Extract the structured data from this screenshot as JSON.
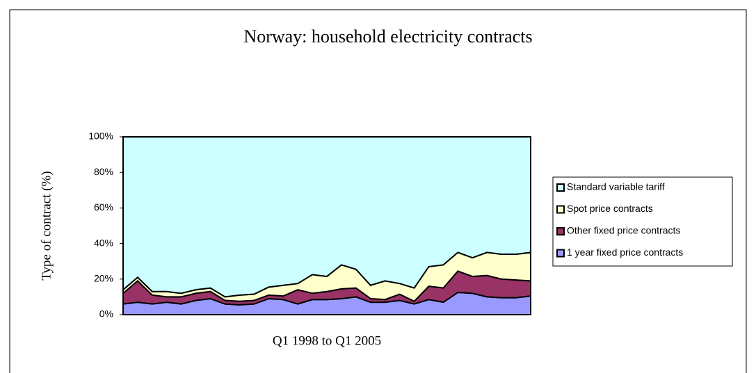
{
  "chart_data": {
    "type": "area",
    "stacked": true,
    "title": "Norway: household electricity contracts",
    "x_label": "Q1 1998 to Q1 2005",
    "y_label": "Type of contract (%)",
    "categories": [
      null,
      null,
      null,
      null,
      null,
      null,
      null,
      null,
      null,
      null,
      null,
      null,
      null,
      null,
      null,
      null,
      null,
      null,
      null,
      null,
      null,
      null,
      null,
      null,
      null,
      null,
      null,
      null,
      null
    ],
    "series": [
      {
        "name": "1 year fixed price contracts",
        "color": "#9999ff",
        "values": [
          6,
          7,
          6,
          7,
          6,
          8,
          9,
          6,
          5.5,
          6,
          9,
          8.5,
          6,
          8.5,
          8.5,
          9,
          10,
          7,
          7,
          8,
          6,
          8.5,
          7,
          12.5,
          12,
          10,
          9.5,
          9.5,
          10.5
        ]
      },
      {
        "name": "Other fixed price contracts",
        "color": "#993366",
        "values": [
          6,
          12,
          5,
          3,
          4,
          4,
          4,
          2,
          2,
          2,
          2,
          2,
          8,
          3.5,
          4.5,
          5.5,
          5,
          2,
          1.5,
          3.5,
          1.5,
          7.5,
          8,
          12,
          9.5,
          12,
          10.5,
          10,
          8.5
        ]
      },
      {
        "name": "Spot price contracts",
        "color": "#ffffcc",
        "values": [
          2,
          2,
          2,
          3,
          2,
          2,
          2,
          2,
          3.5,
          3.5,
          4.5,
          6,
          3.5,
          10.5,
          8.5,
          13.5,
          10.5,
          7.5,
          10.5,
          6,
          7.5,
          11,
          13,
          10.5,
          10.5,
          13,
          14,
          14.5,
          16
        ]
      },
      {
        "name": "Standard variable tariff",
        "color": "#ccffff",
        "values": [
          86,
          79,
          87,
          87,
          88,
          86,
          85,
          90,
          89,
          88.5,
          84.5,
          83.5,
          82.5,
          77.5,
          78.5,
          72,
          74.5,
          83.5,
          81,
          82.5,
          85,
          73,
          72,
          65,
          68,
          65,
          66,
          66,
          65
        ]
      }
    ],
    "ylim": [
      0,
      100
    ],
    "yticks": [
      {
        "value": 0,
        "label": "0%"
      },
      {
        "value": 20,
        "label": "20%"
      },
      {
        "value": 40,
        "label": "40%"
      },
      {
        "value": 60,
        "label": "60%"
      },
      {
        "value": 80,
        "label": "80%"
      },
      {
        "value": 100,
        "label": "100%"
      }
    ],
    "legend": "right"
  }
}
